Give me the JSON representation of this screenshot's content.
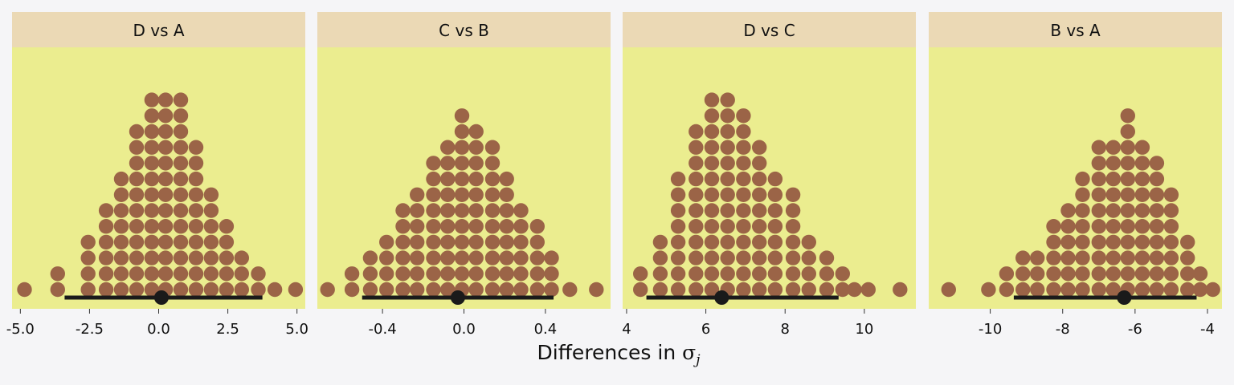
{
  "chart_data": {
    "type": "dotplot",
    "xlabel_prefix": "Differences in ",
    "xlabel_symbol": "σ",
    "xlabel_subscript": "j",
    "colors": {
      "page_bg": "#f5f5f7",
      "panel_bg": "#ebed8f",
      "strip_bg": "#ebd9b5",
      "dot_fill": "#9b6447",
      "interval": "#1a1a1a",
      "point_estimate": "#1a1a1a"
    },
    "panels": [
      {
        "title": "D vs A",
        "xlim": [
          -5.3,
          5.3
        ],
        "ticks": [
          -5.0,
          -2.5,
          0.0,
          2.5,
          5.0
        ],
        "tick_labels": [
          "-5.0",
          "-2.5",
          "0.0",
          "2.5",
          "5.0"
        ],
        "point_estimate": 0.1,
        "interval": [
          -3.4,
          3.75
        ],
        "dot_columns": [
          {
            "x": -4.85,
            "count": 1
          },
          {
            "x": -3.65,
            "count": 2
          },
          {
            "x": -2.55,
            "count": 4
          },
          {
            "x": -1.9,
            "count": 6
          },
          {
            "x": -1.35,
            "count": 8
          },
          {
            "x": -0.8,
            "count": 11
          },
          {
            "x": -0.25,
            "count": 13
          },
          {
            "x": 0.25,
            "count": 13
          },
          {
            "x": 0.8,
            "count": 13
          },
          {
            "x": 1.35,
            "count": 10
          },
          {
            "x": 1.9,
            "count": 7
          },
          {
            "x": 2.45,
            "count": 5
          },
          {
            "x": 3.0,
            "count": 3
          },
          {
            "x": 3.6,
            "count": 2
          },
          {
            "x": 4.2,
            "count": 1
          },
          {
            "x": 4.95,
            "count": 1
          }
        ]
      },
      {
        "title": "C vs B",
        "xlim": [
          -0.72,
          0.72
        ],
        "ticks": [
          -0.4,
          0.0,
          0.4
        ],
        "tick_labels": [
          "-0.4",
          "0.0",
          "0.4"
        ],
        "point_estimate": -0.03,
        "interval": [
          -0.5,
          0.44
        ],
        "dot_columns": [
          {
            "x": -0.67,
            "count": 1
          },
          {
            "x": -0.55,
            "count": 2
          },
          {
            "x": -0.46,
            "count": 3
          },
          {
            "x": -0.38,
            "count": 4
          },
          {
            "x": -0.3,
            "count": 6
          },
          {
            "x": -0.23,
            "count": 7
          },
          {
            "x": -0.15,
            "count": 9
          },
          {
            "x": -0.08,
            "count": 10
          },
          {
            "x": -0.01,
            "count": 12
          },
          {
            "x": 0.06,
            "count": 11
          },
          {
            "x": 0.14,
            "count": 10
          },
          {
            "x": 0.21,
            "count": 8
          },
          {
            "x": 0.28,
            "count": 6
          },
          {
            "x": 0.36,
            "count": 5
          },
          {
            "x": 0.43,
            "count": 3
          },
          {
            "x": 0.52,
            "count": 1
          },
          {
            "x": 0.65,
            "count": 1
          }
        ]
      },
      {
        "title": "D vs C",
        "xlim": [
          3.9,
          11.3
        ],
        "ticks": [
          4,
          6,
          8,
          10
        ],
        "tick_labels": [
          "4",
          "6",
          "8",
          "10"
        ],
        "point_estimate": 6.4,
        "interval": [
          4.5,
          9.35
        ],
        "dot_columns": [
          {
            "x": 4.35,
            "count": 2
          },
          {
            "x": 4.85,
            "count": 4
          },
          {
            "x": 5.3,
            "count": 8
          },
          {
            "x": 5.75,
            "count": 11
          },
          {
            "x": 6.15,
            "count": 13
          },
          {
            "x": 6.55,
            "count": 13
          },
          {
            "x": 6.95,
            "count": 12
          },
          {
            "x": 7.35,
            "count": 10
          },
          {
            "x": 7.75,
            "count": 8
          },
          {
            "x": 8.2,
            "count": 7
          },
          {
            "x": 8.6,
            "count": 4
          },
          {
            "x": 9.05,
            "count": 3
          },
          {
            "x": 9.45,
            "count": 2
          },
          {
            "x": 9.75,
            "count": 1
          },
          {
            "x": 10.1,
            "count": 1
          },
          {
            "x": 10.9,
            "count": 1
          }
        ]
      },
      {
        "title": "B vs A",
        "xlim": [
          -11.7,
          -3.6
        ],
        "ticks": [
          -10,
          -8,
          -6,
          -4
        ],
        "tick_labels": [
          "-10",
          "-8",
          "-6",
          "-4"
        ],
        "point_estimate": -6.3,
        "interval": [
          -9.35,
          -4.3
        ],
        "dot_columns": [
          {
            "x": -11.15,
            "count": 1
          },
          {
            "x": -10.05,
            "count": 1
          },
          {
            "x": -9.55,
            "count": 2
          },
          {
            "x": -9.1,
            "count": 3
          },
          {
            "x": -8.7,
            "count": 3
          },
          {
            "x": -8.25,
            "count": 5
          },
          {
            "x": -7.85,
            "count": 6
          },
          {
            "x": -7.45,
            "count": 8
          },
          {
            "x": -7.0,
            "count": 10
          },
          {
            "x": -6.6,
            "count": 10
          },
          {
            "x": -6.2,
            "count": 12
          },
          {
            "x": -5.8,
            "count": 10
          },
          {
            "x": -5.4,
            "count": 9
          },
          {
            "x": -5.0,
            "count": 7
          },
          {
            "x": -4.55,
            "count": 4
          },
          {
            "x": -4.2,
            "count": 2
          },
          {
            "x": -3.85,
            "count": 1
          }
        ]
      }
    ]
  }
}
